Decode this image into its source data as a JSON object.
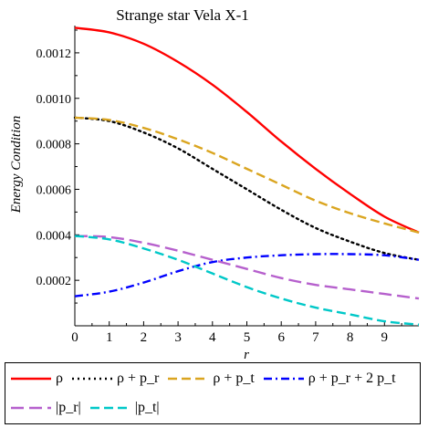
{
  "chart_data": {
    "type": "line",
    "title": "Strange star Vela X-1",
    "xlabel": "r",
    "ylabel": "Energy  Condition",
    "xlim": [
      0,
      10
    ],
    "ylim": [
      0,
      0.00132
    ],
    "xticks": [
      0,
      1,
      2,
      3,
      4,
      5,
      6,
      7,
      8,
      9
    ],
    "xtick_labels": [
      "0",
      "1",
      "2",
      "3",
      "4",
      "5",
      "6",
      "7",
      "8",
      "9"
    ],
    "yticks": [
      0.0002,
      0.0004,
      0.0006,
      0.0008,
      0.001,
      0.0012
    ],
    "ytick_labels": [
      "0.0002",
      "0.0004",
      "0.0006",
      "0.0008",
      "0.0010",
      "0.0012"
    ],
    "grid": false,
    "legend_position": "bottom",
    "x": [
      0,
      1,
      2,
      3,
      4,
      5,
      6,
      7,
      8,
      9,
      10
    ],
    "series": [
      {
        "name": "ρ",
        "color": "#ff0000",
        "dash": "solid",
        "values": [
          0.00131,
          0.00129,
          0.00124,
          0.00116,
          0.00106,
          0.00094,
          0.00081,
          0.00069,
          0.00058,
          0.00048,
          0.00041
        ]
      },
      {
        "name": "ρ + p_r",
        "color": "#000000",
        "dash": "dot",
        "values": [
          0.000915,
          0.0009,
          0.00085,
          0.00078,
          0.00069,
          0.0006,
          0.00051,
          0.00043,
          0.00037,
          0.00032,
          0.00029
        ]
      },
      {
        "name": "ρ + p_t",
        "color": "#daa520",
        "dash": "dash",
        "values": [
          0.000915,
          0.000905,
          0.00087,
          0.00082,
          0.00076,
          0.00069,
          0.00062,
          0.00055,
          0.000495,
          0.00045,
          0.00041
        ]
      },
      {
        "name": "ρ + p_r + 2 p_t",
        "color": "#0000ff",
        "dash": "dashdot",
        "values": [
          0.00013,
          0.00015,
          0.00019,
          0.00024,
          0.00028,
          0.0003,
          0.00031,
          0.000315,
          0.000315,
          0.00031,
          0.00029
        ]
      },
      {
        "name": "|p_r|",
        "color": "#b660cd",
        "dash": "longdash",
        "values": [
          0.000395,
          0.00039,
          0.000365,
          0.00033,
          0.00029,
          0.00025,
          0.00021,
          0.00018,
          0.00016,
          0.00014,
          0.00012
        ]
      },
      {
        "name": "|p_t|",
        "color": "#00c8c8",
        "dash": "dash",
        "values": [
          0.000395,
          0.00038,
          0.00034,
          0.00029,
          0.00023,
          0.00017,
          0.00012,
          8e-05,
          5e-05,
          2e-05,
          5e-06
        ]
      }
    ]
  }
}
